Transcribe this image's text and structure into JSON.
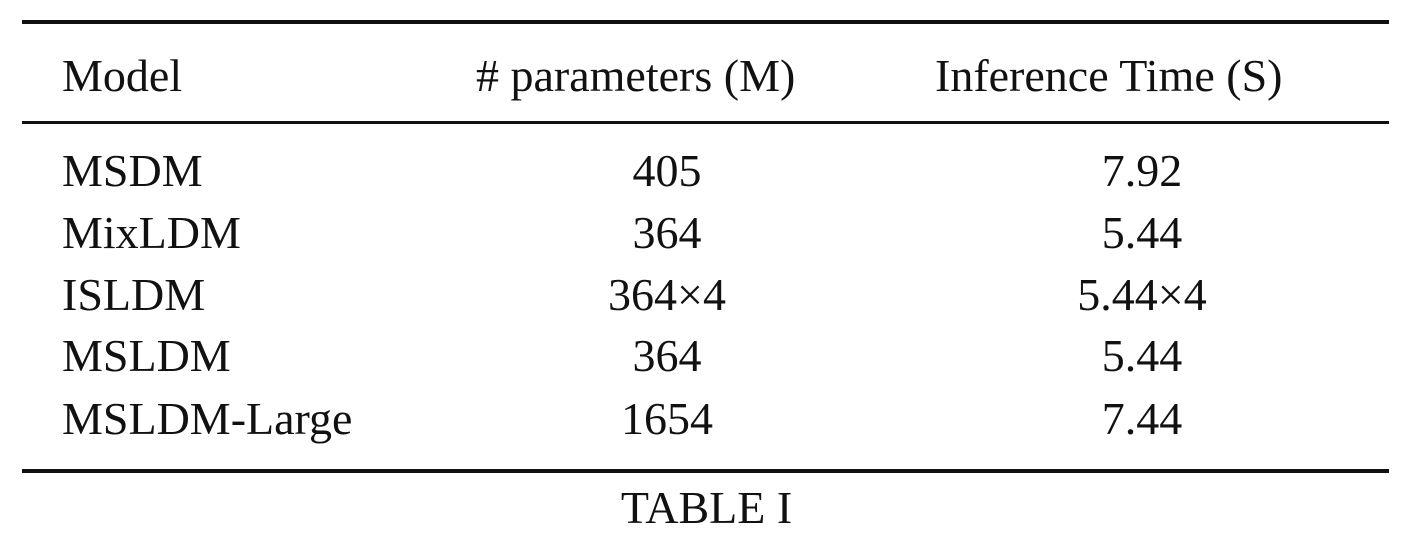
{
  "table": {
    "headers": {
      "model": "Model",
      "params": "# parameters (M)",
      "time": "Inference Time (S)"
    },
    "rows": [
      {
        "model": "MSDM",
        "params": "405",
        "time": "7.92"
      },
      {
        "model": "MixLDM",
        "params": "364",
        "time": "5.44"
      },
      {
        "model": "ISLDM",
        "params": "364×4",
        "time": "5.44×4"
      },
      {
        "model": "MSLDM",
        "params": "364",
        "time": "5.44"
      },
      {
        "model": "MSLDM-Large",
        "params": "1654",
        "time": "7.44"
      }
    ]
  },
  "caption": "TABLE I"
}
